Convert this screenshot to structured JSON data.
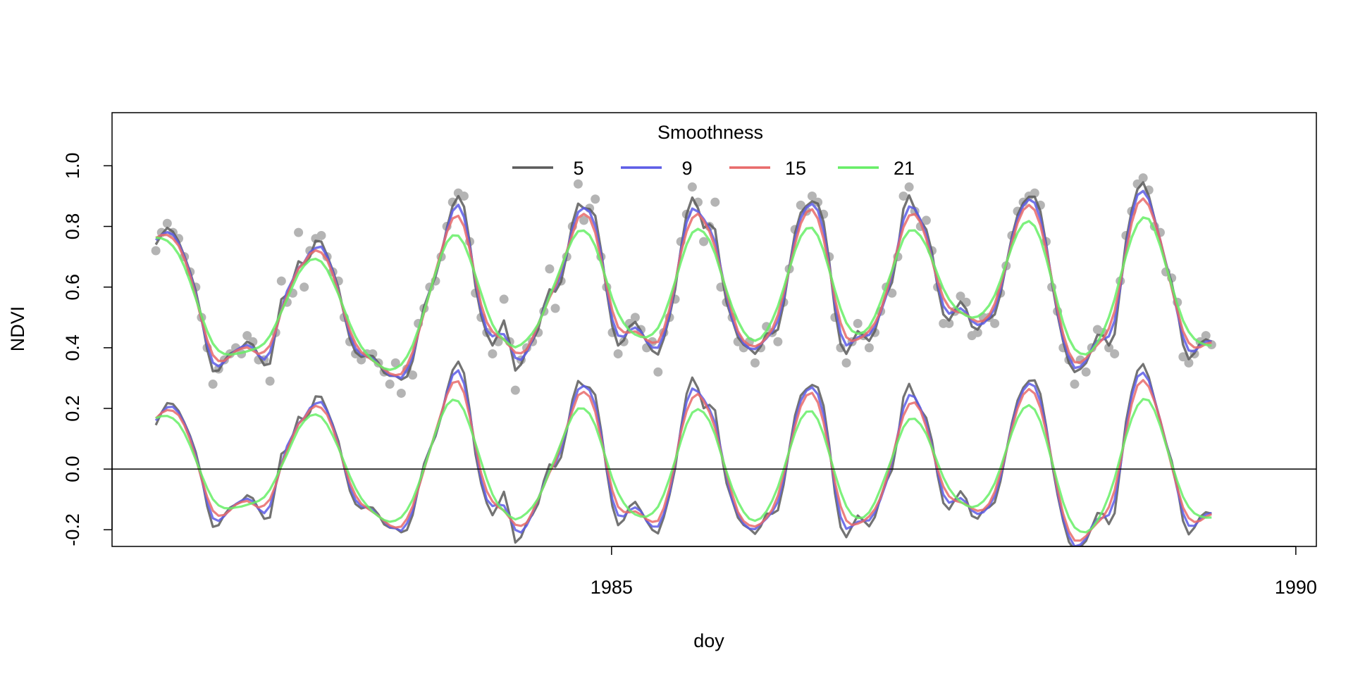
{
  "chart_data": {
    "type": "line",
    "title": "",
    "xlabel": "doy",
    "ylabel": "NDVI",
    "xlim": [
      1981.35,
      1990.15
    ],
    "ylim": [
      -0.255,
      1.175
    ],
    "x_ticks": [
      {
        "value": 1985,
        "label": "1985"
      },
      {
        "value": 1990,
        "label": "1990"
      }
    ],
    "y_ticks": [
      {
        "value": -0.2,
        "label": "-0.2"
      },
      {
        "value": 0.0,
        "label": "0.0"
      },
      {
        "value": 0.2,
        "label": "0.2"
      },
      {
        "value": 0.4,
        "label": "0.4"
      },
      {
        "value": 0.6,
        "label": "0.6"
      },
      {
        "value": 0.8,
        "label": "0.8"
      },
      {
        "value": 1.0,
        "label": "1.0"
      }
    ],
    "reference_line": {
      "y": 0
    },
    "grid": false,
    "legend": {
      "title": "Smoothness",
      "placement": "top-center",
      "orientation": "horizontal"
    },
    "series": [
      {
        "name": "5",
        "color": "#5a5a5a"
      },
      {
        "name": "9",
        "color": "#5c5ce6"
      },
      {
        "name": "15",
        "color": "#e86a6a"
      },
      {
        "name": "21",
        "color": "#66ee66"
      }
    ],
    "point_color": "#b4b4b4",
    "observations": {
      "x_start": 1981.67,
      "step": 0.0417,
      "ndvi": [
        0.72,
        0.78,
        0.81,
        0.78,
        0.76,
        0.7,
        0.65,
        0.6,
        0.5,
        0.4,
        0.28,
        0.33,
        0.36,
        0.38,
        0.4,
        0.38,
        0.44,
        0.42,
        0.36,
        0.36,
        0.29,
        0.45,
        0.62,
        0.55,
        0.58,
        0.78,
        0.6,
        0.72,
        0.76,
        0.77,
        0.7,
        0.65,
        0.62,
        0.5,
        0.42,
        0.38,
        0.36,
        0.38,
        0.38,
        0.35,
        0.32,
        0.28,
        0.35,
        0.25,
        0.33,
        0.31,
        0.48,
        0.53,
        0.6,
        0.62,
        0.7,
        0.8,
        0.88,
        0.91,
        0.9,
        0.75,
        0.58,
        0.5,
        0.45,
        0.38,
        0.42,
        0.56,
        0.42,
        0.26,
        0.36,
        0.4,
        0.42,
        0.45,
        0.52,
        0.66,
        0.53,
        0.62,
        0.7,
        0.8,
        0.94,
        0.82,
        0.86,
        0.89,
        0.7,
        0.6,
        0.45,
        0.38,
        0.42,
        0.48,
        0.5,
        0.46,
        0.4,
        0.42,
        0.32,
        0.45,
        0.5,
        0.56,
        0.75,
        0.84,
        0.93,
        0.88,
        0.75,
        0.8,
        0.88,
        0.6,
        0.55,
        0.5,
        0.42,
        0.4,
        0.42,
        0.35,
        0.4,
        0.47,
        0.45,
        0.42,
        0.55,
        0.66,
        0.79,
        0.87,
        0.85,
        0.9,
        0.88,
        0.84,
        0.7,
        0.5,
        0.4,
        0.35,
        0.42,
        0.48,
        0.44,
        0.4,
        0.45,
        0.52,
        0.6,
        0.58,
        0.7,
        0.9,
        0.93,
        0.85,
        0.8,
        0.82,
        0.72,
        0.6,
        0.48,
        0.48,
        0.52,
        0.57,
        0.55,
        0.44,
        0.45,
        0.5,
        0.5,
        0.48,
        0.58,
        0.67,
        0.77,
        0.85,
        0.88,
        0.9,
        0.91,
        0.87,
        0.75,
        0.6,
        0.52,
        0.4,
        0.36,
        0.28,
        0.36,
        0.32,
        0.4,
        0.46,
        0.45,
        0.4,
        0.38,
        0.62,
        0.77,
        0.85,
        0.94,
        0.96,
        0.92,
        0.8,
        0.78,
        0.65,
        0.63,
        0.55,
        0.37,
        0.35,
        0.38,
        0.42,
        0.44,
        0.41
      ]
    }
  }
}
